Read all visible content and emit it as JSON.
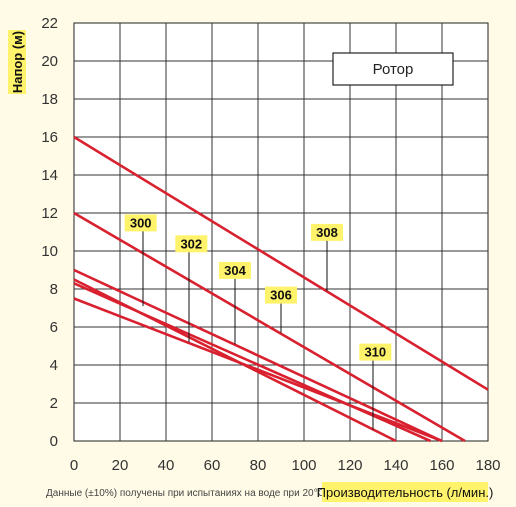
{
  "chart_data": {
    "type": "line",
    "title": "",
    "ylabel": "Напор (м)",
    "xlabel": "Производительность (л/мин.)",
    "note": "Данные (±10%) получены при испытаниях на воде при 20°C.",
    "legend_box": "Ротор",
    "xlim": [
      0,
      180
    ],
    "ylim": [
      0,
      22
    ],
    "xticks": [
      0,
      20,
      40,
      60,
      80,
      100,
      120,
      140,
      160,
      180
    ],
    "yticks": [
      0,
      2,
      4,
      6,
      8,
      10,
      12,
      14,
      16,
      18,
      20,
      22
    ],
    "grid": true,
    "series": [
      {
        "name": "300",
        "x": [
          0,
          140
        ],
        "y": [
          8.5,
          0
        ],
        "label_pointer": {
          "x": 30,
          "y": 7.1
        },
        "label_tag": {
          "x": 29,
          "y": 11.4
        }
      },
      {
        "name": "302",
        "x": [
          0,
          155
        ],
        "y": [
          8.3,
          0
        ],
        "label_pointer": {
          "x": 50,
          "y": 5.2
        },
        "label_tag": {
          "x": 51,
          "y": 10.3
        }
      },
      {
        "name": "304",
        "x": [
          0,
          160
        ],
        "y": [
          7.5,
          0
        ],
        "label_pointer": {
          "x": 70,
          "y": 5.1
        },
        "label_tag": {
          "x": 70,
          "y": 8.9
        }
      },
      {
        "name": "306",
        "x": [
          0,
          160
        ],
        "y": [
          9.0,
          0
        ],
        "label_pointer": {
          "x": 90,
          "y": 5.7
        },
        "label_tag": {
          "x": 90,
          "y": 7.6
        }
      },
      {
        "name": "308",
        "x": [
          0,
          180
        ],
        "y": [
          16.0,
          2.7
        ],
        "label_pointer": {
          "x": 110,
          "y": 7.9
        },
        "label_tag": {
          "x": 110,
          "y": 10.9
        }
      },
      {
        "name": "310",
        "x": [
          0,
          170
        ],
        "y": [
          12.0,
          0
        ],
        "label_pointer": {
          "x": 130,
          "y": 0.6
        },
        "label_tag": {
          "x": 131,
          "y": 4.6
        }
      }
    ],
    "line_color": "#d9202f",
    "tag_color": "#fff36b"
  }
}
